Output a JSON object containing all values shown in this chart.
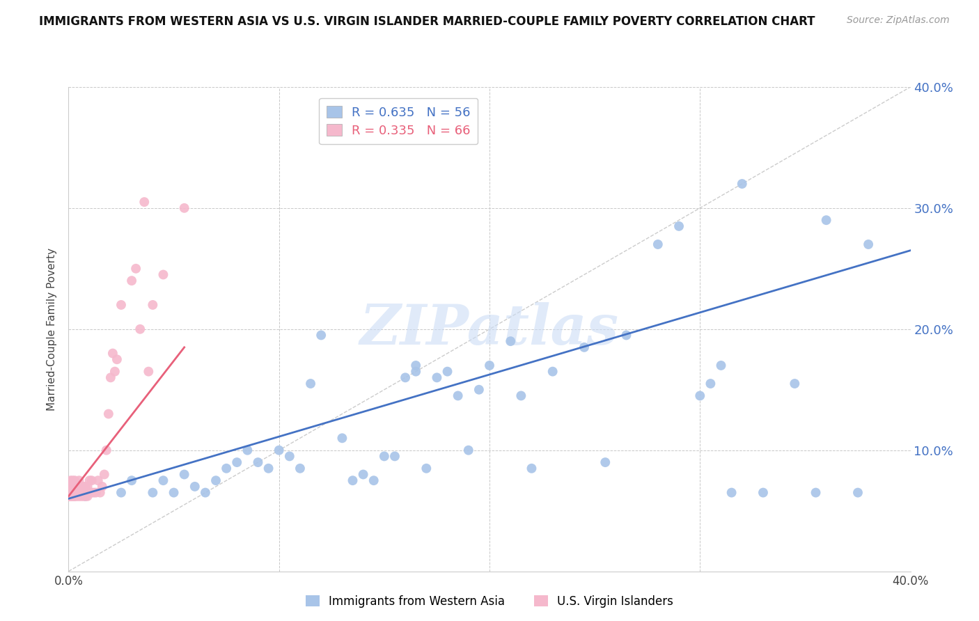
{
  "title": "IMMIGRANTS FROM WESTERN ASIA VS U.S. VIRGIN ISLANDER MARRIED-COUPLE FAMILY POVERTY CORRELATION CHART",
  "source": "Source: ZipAtlas.com",
  "ylabel": "Married-Couple Family Poverty",
  "xlim": [
    0.0,
    0.4
  ],
  "ylim": [
    0.0,
    0.4
  ],
  "xticks": [
    0.0,
    0.1,
    0.2,
    0.3,
    0.4
  ],
  "yticks": [
    0.0,
    0.1,
    0.2,
    0.3,
    0.4
  ],
  "right_ytick_labels": [
    "",
    "10.0%",
    "20.0%",
    "30.0%",
    "40.0%"
  ],
  "xtick_labels": [
    "0.0%",
    "",
    "",
    "",
    "40.0%"
  ],
  "legend1_label": "Immigrants from Western Asia",
  "legend2_label": "U.S. Virgin Islanders",
  "R1": 0.635,
  "N1": 56,
  "R2": 0.335,
  "N2": 66,
  "blue_color": "#a8c4e8",
  "pink_color": "#f5b8cc",
  "blue_line_color": "#4472c4",
  "pink_line_color": "#e8607a",
  "axis_color": "#4472c4",
  "watermark": "ZIPatlas",
  "blue_line_x0": 0.0,
  "blue_line_y0": 0.06,
  "blue_line_x1": 0.4,
  "blue_line_y1": 0.265,
  "pink_line_x0": 0.0,
  "pink_line_y0": 0.062,
  "pink_line_x1": 0.055,
  "pink_line_y1": 0.185,
  "blue_scatter_x": [
    0.008,
    0.025,
    0.03,
    0.04,
    0.045,
    0.05,
    0.055,
    0.06,
    0.065,
    0.07,
    0.075,
    0.08,
    0.085,
    0.09,
    0.095,
    0.1,
    0.105,
    0.11,
    0.115,
    0.12,
    0.13,
    0.135,
    0.14,
    0.145,
    0.15,
    0.155,
    0.16,
    0.165,
    0.165,
    0.17,
    0.175,
    0.18,
    0.185,
    0.19,
    0.195,
    0.2,
    0.21,
    0.215,
    0.22,
    0.23,
    0.245,
    0.255,
    0.265,
    0.28,
    0.29,
    0.3,
    0.305,
    0.31,
    0.315,
    0.32,
    0.33,
    0.345,
    0.355,
    0.36,
    0.375,
    0.38
  ],
  "blue_scatter_y": [
    0.062,
    0.065,
    0.075,
    0.065,
    0.075,
    0.065,
    0.08,
    0.07,
    0.065,
    0.075,
    0.085,
    0.09,
    0.1,
    0.09,
    0.085,
    0.1,
    0.095,
    0.085,
    0.155,
    0.195,
    0.11,
    0.075,
    0.08,
    0.075,
    0.095,
    0.095,
    0.16,
    0.17,
    0.165,
    0.085,
    0.16,
    0.165,
    0.145,
    0.1,
    0.15,
    0.17,
    0.19,
    0.145,
    0.085,
    0.165,
    0.185,
    0.09,
    0.195,
    0.27,
    0.285,
    0.145,
    0.155,
    0.17,
    0.065,
    0.32,
    0.065,
    0.155,
    0.065,
    0.29,
    0.065,
    0.27
  ],
  "pink_scatter_x": [
    0.0,
    0.0,
    0.0,
    0.0,
    0.0,
    0.0,
    0.001,
    0.001,
    0.001,
    0.001,
    0.001,
    0.001,
    0.002,
    0.002,
    0.002,
    0.002,
    0.002,
    0.002,
    0.003,
    0.003,
    0.003,
    0.003,
    0.003,
    0.003,
    0.004,
    0.004,
    0.004,
    0.005,
    0.005,
    0.005,
    0.005,
    0.006,
    0.006,
    0.006,
    0.007,
    0.007,
    0.007,
    0.008,
    0.008,
    0.009,
    0.009,
    0.01,
    0.01,
    0.011,
    0.011,
    0.012,
    0.013,
    0.014,
    0.015,
    0.016,
    0.017,
    0.018,
    0.019,
    0.02,
    0.021,
    0.022,
    0.023,
    0.025,
    0.03,
    0.032,
    0.034,
    0.036,
    0.038,
    0.04,
    0.045,
    0.055
  ],
  "pink_scatter_y": [
    0.062,
    0.062,
    0.065,
    0.065,
    0.068,
    0.07,
    0.062,
    0.062,
    0.065,
    0.065,
    0.07,
    0.075,
    0.062,
    0.062,
    0.065,
    0.065,
    0.07,
    0.075,
    0.062,
    0.062,
    0.065,
    0.065,
    0.07,
    0.075,
    0.062,
    0.065,
    0.07,
    0.062,
    0.065,
    0.07,
    0.075,
    0.062,
    0.065,
    0.07,
    0.062,
    0.065,
    0.07,
    0.062,
    0.07,
    0.062,
    0.07,
    0.065,
    0.075,
    0.065,
    0.075,
    0.065,
    0.065,
    0.075,
    0.065,
    0.07,
    0.08,
    0.1,
    0.13,
    0.16,
    0.18,
    0.165,
    0.175,
    0.22,
    0.24,
    0.25,
    0.2,
    0.305,
    0.165,
    0.22,
    0.245,
    0.3
  ],
  "background_color": "#ffffff",
  "grid_color": "#c8c8c8",
  "diag_color": "#cccccc"
}
